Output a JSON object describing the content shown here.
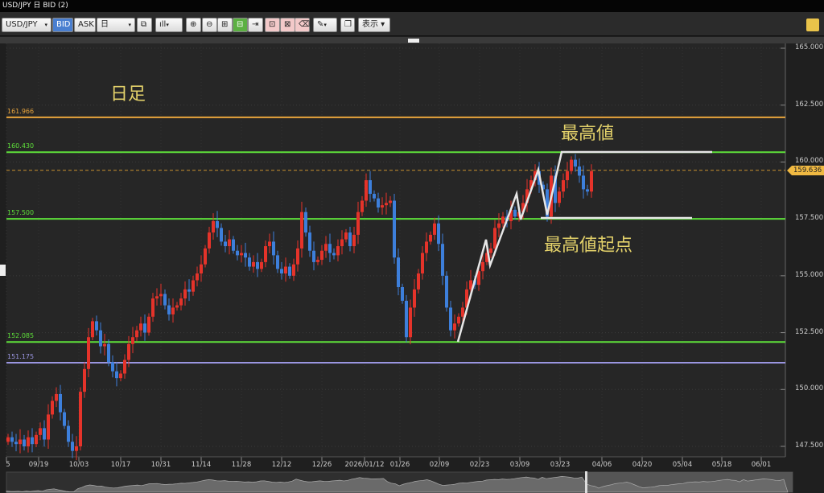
{
  "window": {
    "title": "USD/JPY 日 BID (2)"
  },
  "toolbar": {
    "symbol": "USD/JPY",
    "bid": "BID",
    "ask": "ASK",
    "timeframe": "日",
    "display": "表示 ▾",
    "dropdown_arrow": "▾"
  },
  "annotations": {
    "timeframe_label": "日足",
    "high_label": "最高値",
    "high_origin_label": "最高値起点"
  },
  "colors": {
    "up": "#e5332a",
    "down": "#3d7fdb",
    "green_level": "#5ee03a",
    "orange_level": "#e9a53c",
    "purple_level": "#9a95e0",
    "annotation_text": "#e3d16a"
  },
  "chart_data": {
    "type": "candlestick",
    "ylim": [
      147.5,
      165.0
    ],
    "y_ticks": [
      "165.000",
      "162.500",
      "160.000",
      "157.500",
      "155.000",
      "152.500",
      "150.000",
      "147.500"
    ],
    "x_ticks": [
      "5",
      "09/19",
      "10/03",
      "10/17",
      "10/31",
      "11/14",
      "11/28",
      "12/12",
      "12/26",
      "2026/01/12",
      "01/26",
      "02/09",
      "02/23",
      "03/09",
      "03/23",
      "04/06",
      "04/20",
      "05/04",
      "05/18",
      "06/01"
    ],
    "current_price": "159.636",
    "levels": [
      {
        "label": "161.966",
        "value": 161.966,
        "color": "#e9a53c"
      },
      {
        "label": "160.430",
        "value": 160.43,
        "color": "#5ee03a"
      },
      {
        "label": "157.500",
        "value": 157.5,
        "color": "#5ee03a"
      },
      {
        "label": "152.085",
        "value": 152.085,
        "color": "#5ee03a"
      },
      {
        "label": "151.175",
        "value": 151.175,
        "color": "#9a95e0"
      }
    ],
    "closes": [
      147.9,
      147.7,
      147.6,
      147.8,
      147.5,
      147.9,
      147.6,
      148.0,
      148.3,
      147.8,
      148.9,
      149.5,
      149.8,
      149.0,
      148.4,
      147.7,
      147.3,
      147.5,
      149.9,
      150.9,
      152.3,
      153.0,
      152.6,
      151.9,
      152.0,
      151.2,
      150.8,
      150.5,
      150.7,
      151.3,
      152.0,
      152.3,
      152.6,
      152.9,
      152.5,
      153.2,
      154.0,
      154.1,
      154.2,
      153.7,
      153.3,
      153.6,
      153.7,
      154.0,
      154.4,
      154.3,
      154.8,
      155.1,
      155.5,
      156.2,
      156.9,
      157.4,
      157.1,
      156.5,
      156.3,
      156.6,
      156.1,
      155.9,
      156.0,
      155.8,
      155.4,
      155.6,
      155.3,
      155.6,
      156.3,
      156.5,
      155.9,
      155.3,
      155.1,
      155.4,
      155.0,
      155.5,
      156.2,
      157.8,
      156.9,
      156.1,
      155.6,
      155.7,
      156.1,
      156.4,
      156.0,
      155.9,
      156.3,
      156.6,
      156.9,
      156.3,
      156.8,
      157.8,
      158.3,
      159.2,
      158.6,
      158.4,
      158.0,
      158.1,
      158.2,
      158.3,
      155.8,
      154.5,
      153.9,
      152.3,
      153.6,
      154.4,
      155.1,
      156.0,
      156.5,
      156.8,
      157.3,
      156.4,
      155.0,
      153.6,
      152.6,
      152.9,
      153.2,
      153.6,
      154.4,
      154.8,
      154.6,
      155.2,
      155.6,
      156.0,
      156.2,
      157.1,
      157.3,
      157.6,
      157.4,
      157.9,
      157.6,
      157.8,
      158.2,
      158.8,
      159.2,
      159.6,
      159.0,
      158.8,
      157.6,
      159.4,
      158.2,
      158.7,
      159.2,
      159.6,
      160.1,
      159.8,
      159.4,
      158.8,
      158.7,
      159.6
    ]
  }
}
